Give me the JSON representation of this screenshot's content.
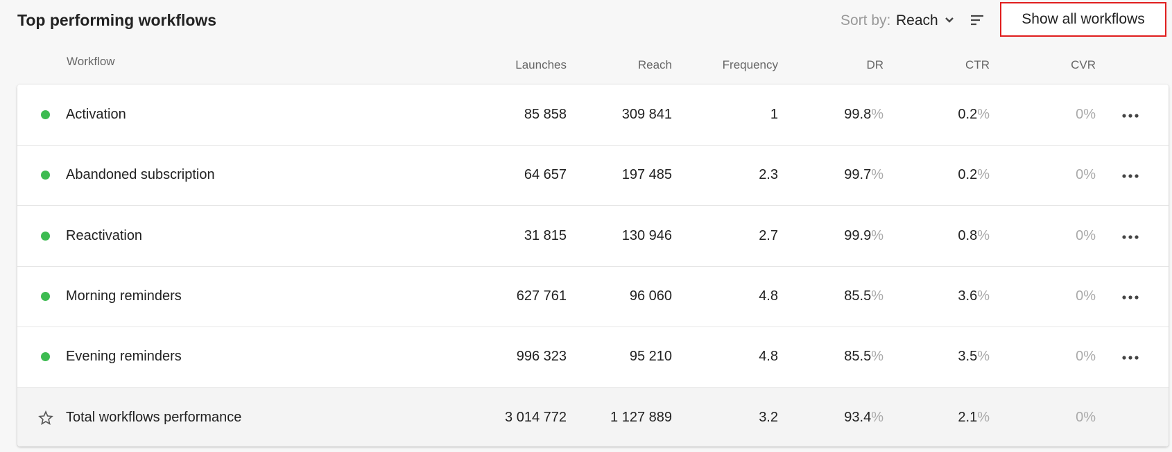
{
  "header": {
    "title": "Top performing workflows",
    "sort_label": "Sort by:",
    "sort_value": "Reach",
    "button": "Show all workflows"
  },
  "table": {
    "columns": [
      "Workflow",
      "Launches",
      "Reach",
      "Frequency",
      "DR",
      "CTR",
      "CVR"
    ],
    "rows": [
      {
        "name": "Activation",
        "cells": [
          "85 858",
          "309 841",
          "1",
          {
            "value": "99.8",
            "unit": "%"
          },
          {
            "value": "0.2",
            "unit": "%"
          },
          {
            "value": "0",
            "unit": "%"
          }
        ]
      },
      {
        "name": "Abandoned subscription",
        "cells": [
          "64 657",
          "197 485",
          "2.3",
          {
            "value": "99.7",
            "unit": "%"
          },
          {
            "value": "0.2",
            "unit": "%"
          },
          {
            "value": "0",
            "unit": "%"
          }
        ]
      },
      {
        "name": "Reactivation",
        "cells": [
          "31 815",
          "130 946",
          "2.7",
          {
            "value": "99.9",
            "unit": "%"
          },
          {
            "value": "0.8",
            "unit": "%"
          },
          {
            "value": "0",
            "unit": "%"
          }
        ]
      },
      {
        "name": "Morning reminders",
        "cells": [
          "627 761",
          "96 060",
          "4.8",
          {
            "value": "85.5",
            "unit": "%"
          },
          {
            "value": "3.6",
            "unit": "%"
          },
          {
            "value": "0",
            "unit": "%"
          }
        ]
      },
      {
        "name": "Evening reminders",
        "cells": [
          "996 323",
          "95 210",
          "4.8",
          {
            "value": "85.5",
            "unit": "%"
          },
          {
            "value": "3.5",
            "unit": "%"
          },
          {
            "value": "0",
            "unit": "%"
          }
        ]
      }
    ],
    "total": {
      "name": "Total workflows performance",
      "cells": [
        "3 014 772",
        "1 127 889",
        "3.2",
        {
          "value": "93.4",
          "unit": "%"
        },
        {
          "value": "2.1",
          "unit": "%"
        },
        {
          "value": "0",
          "unit": "%"
        }
      ]
    }
  }
}
